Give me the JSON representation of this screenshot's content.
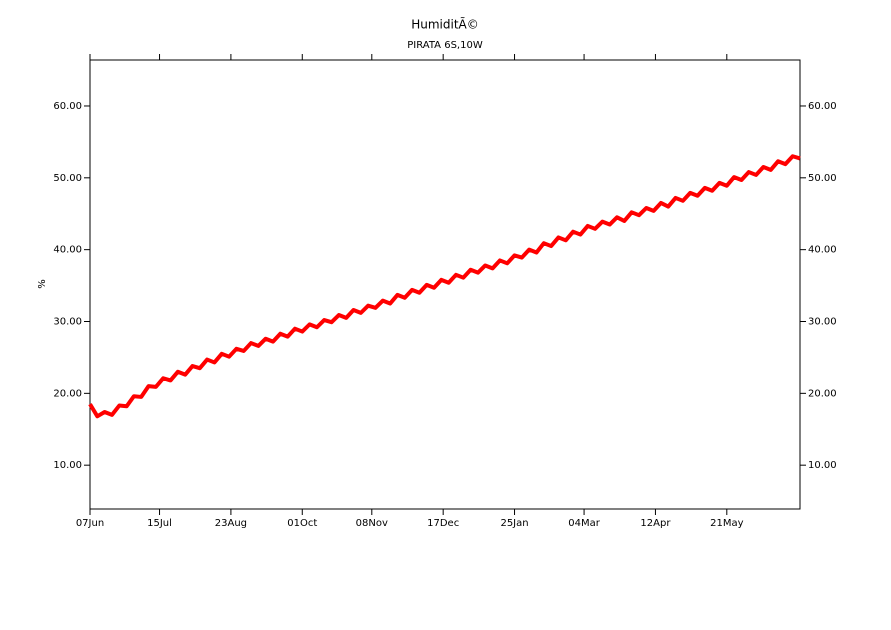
{
  "chart_data": {
    "type": "line",
    "title": "HumiditÃ©",
    "subtitle": "PIRATA 6S,10W",
    "y_label": "%",
    "x": [
      0,
      4,
      8,
      12,
      16,
      20,
      24,
      28,
      32,
      36,
      40,
      44,
      48,
      52,
      56,
      60,
      64,
      68,
      72,
      76,
      80,
      84,
      88,
      92,
      96,
      100,
      104,
      108,
      112,
      116,
      120,
      124,
      128,
      132,
      136,
      140,
      144,
      148,
      152,
      156,
      160,
      164,
      168,
      172,
      176,
      180,
      184,
      188,
      192,
      196,
      200,
      204,
      208,
      212,
      216,
      220,
      224,
      228,
      232,
      236,
      240,
      244,
      248,
      252,
      256,
      260,
      264,
      268,
      272,
      276,
      280,
      284,
      288,
      292,
      296,
      300,
      304,
      308,
      312,
      316,
      320,
      324,
      328,
      332,
      336,
      340,
      344,
      348,
      352,
      356,
      360,
      364,
      368,
      372,
      376,
      380,
      384,
      388
    ],
    "series": [
      {
        "name": "Humidity",
        "color": "#ff0000",
        "values": [
          18.5,
          16.8,
          17.4,
          17.0,
          18.3,
          18.2,
          19.6,
          19.5,
          21.0,
          20.9,
          22.1,
          21.8,
          23.0,
          22.6,
          23.8,
          23.5,
          24.7,
          24.3,
          25.5,
          25.1,
          26.2,
          25.9,
          27.0,
          26.6,
          27.6,
          27.2,
          28.3,
          27.9,
          29.0,
          28.6,
          29.6,
          29.2,
          30.2,
          29.9,
          30.9,
          30.5,
          31.6,
          31.2,
          32.2,
          31.9,
          32.9,
          32.5,
          33.7,
          33.3,
          34.4,
          34.0,
          35.1,
          34.7,
          35.8,
          35.4,
          36.5,
          36.1,
          37.2,
          36.8,
          37.8,
          37.4,
          38.5,
          38.1,
          39.2,
          38.9,
          40.0,
          39.6,
          40.9,
          40.5,
          41.7,
          41.3,
          42.5,
          42.1,
          43.3,
          42.9,
          43.9,
          43.5,
          44.5,
          44.0,
          45.2,
          44.8,
          45.8,
          45.4,
          46.5,
          46.0,
          47.2,
          46.8,
          47.9,
          47.5,
          48.6,
          48.2,
          49.3,
          48.9,
          50.1,
          49.7,
          50.8,
          50.4,
          51.5,
          51.1,
          52.3,
          51.9,
          53.0,
          52.7
        ]
      }
    ],
    "xlim": [
      0,
      388
    ],
    "xticks": [
      {
        "value": 0,
        "label": "07Jun"
      },
      {
        "value": 38,
        "label": "15Jul"
      },
      {
        "value": 77,
        "label": "23Aug"
      },
      {
        "value": 116,
        "label": "01Oct"
      },
      {
        "value": 154,
        "label": "08Nov"
      },
      {
        "value": 193,
        "label": "17Dec"
      },
      {
        "value": 232,
        "label": "25Jan"
      },
      {
        "value": 270,
        "label": "04Mar"
      },
      {
        "value": 309,
        "label": "12Apr"
      },
      {
        "value": 348,
        "label": "21May"
      }
    ],
    "ylim": [
      3.9,
      66.4
    ],
    "yticks": [
      {
        "value": 10,
        "label": "10.00"
      },
      {
        "value": 20,
        "label": "20.00"
      },
      {
        "value": 30,
        "label": "30.00"
      },
      {
        "value": 40,
        "label": "40.00"
      },
      {
        "value": 50,
        "label": "50.00"
      },
      {
        "value": 60,
        "label": "60.00"
      }
    ]
  }
}
